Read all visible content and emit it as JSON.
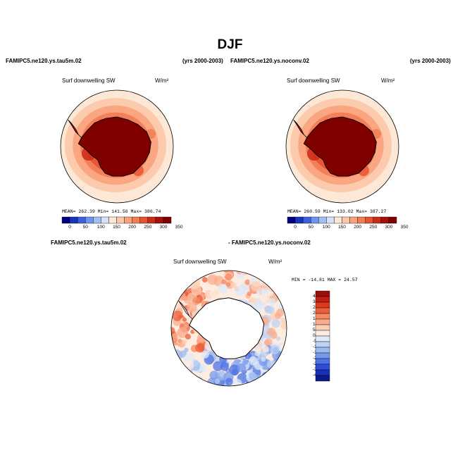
{
  "figure": {
    "title": "DJF",
    "left_case": "FAMIPC5.ne120.ys.tau5m.02",
    "left_years": "(yrs 2000-2003)",
    "right_case": "FAMIPC5.ne120.ys.noconv.02",
    "right_years": "(yrs 2000-2003)",
    "diff_case_a": "FAMIPC5.ne120.ys.tau5m.02",
    "diff_case_b": "- FAMIPC5.ne120.ys.noconv.02"
  },
  "panels": {
    "left": {
      "title": "Surf downwelling SW",
      "units": "W/m²",
      "stats": "MEAN= 262.39   Min= 141.56   Max= 386.74"
    },
    "right": {
      "title": "Surf downwelling SW",
      "units": "W/m²",
      "stats": "MEAN= 260.59   Min= 133.02   Max= 387.27"
    },
    "diff": {
      "title": "Surf downwelling SW",
      "units": "W/m²",
      "stats": "MIN = -14.81  MAX =  24.57"
    }
  },
  "chart_data": [
    {
      "type": "heatmap",
      "title": "Surf downwelling SW",
      "case": "FAMIPC5.ne120.ys.tau5m.02",
      "units": "W/m2",
      "projection": "south polar stereographic",
      "mean": 262.39,
      "min": 141.56,
      "max": 386.74,
      "colorbar_ticks": [
        "0",
        "50",
        "100",
        "150",
        "200",
        "250",
        "300",
        "350"
      ],
      "colorbar_colors": [
        "#000080",
        "#1535c0",
        "#3a62e0",
        "#6e93f0",
        "#a3bdf5",
        "#d3e2f6",
        "#fde8d6",
        "#fcc8a8",
        "#f9a27c",
        "#f27c55",
        "#e5532f",
        "#cc2a15",
        "#a50f0c",
        "#800000"
      ]
    },
    {
      "type": "heatmap",
      "title": "Surf downwelling SW",
      "case": "FAMIPC5.ne120.ys.noconv.02",
      "units": "W/m2",
      "projection": "south polar stereographic",
      "mean": 260.59,
      "min": 133.02,
      "max": 387.27,
      "colorbar_ticks": [
        "0",
        "50",
        "100",
        "150",
        "200",
        "250",
        "300",
        "350"
      ],
      "colorbar_colors": [
        "#000080",
        "#1535c0",
        "#3a62e0",
        "#6e93f0",
        "#a3bdf5",
        "#d3e2f6",
        "#fde8d6",
        "#fcc8a8",
        "#f9a27c",
        "#f27c55",
        "#e5532f",
        "#cc2a15",
        "#a50f0c",
        "#800000"
      ]
    },
    {
      "type": "heatmap",
      "title": "Surf downwelling SW",
      "case": "FAMIPC5.ne120.ys.tau5m.02 - FAMIPC5.ne120.ys.noconv.02",
      "units": "W/m2",
      "projection": "south polar stereographic",
      "min": -14.81,
      "max": 24.57,
      "colorbar_ticks": [
        "40",
        "30",
        "25",
        "20",
        "15",
        "10",
        "5",
        "0",
        "-5",
        "-10",
        "-15",
        "-20",
        "-25",
        "-30",
        "-40"
      ],
      "colorbar_colors": [
        "#9a0e0c",
        "#c1200f",
        "#dd3b20",
        "#ec5f3b",
        "#f58a63",
        "#f9ad8d",
        "#fcd0b6",
        "#feece0",
        "#dde9f9",
        "#bdd2f4",
        "#9bb9f0",
        "#7598ec",
        "#4d73e4",
        "#2c4ed8",
        "#1830b8",
        "#0a1a8a"
      ]
    }
  ]
}
